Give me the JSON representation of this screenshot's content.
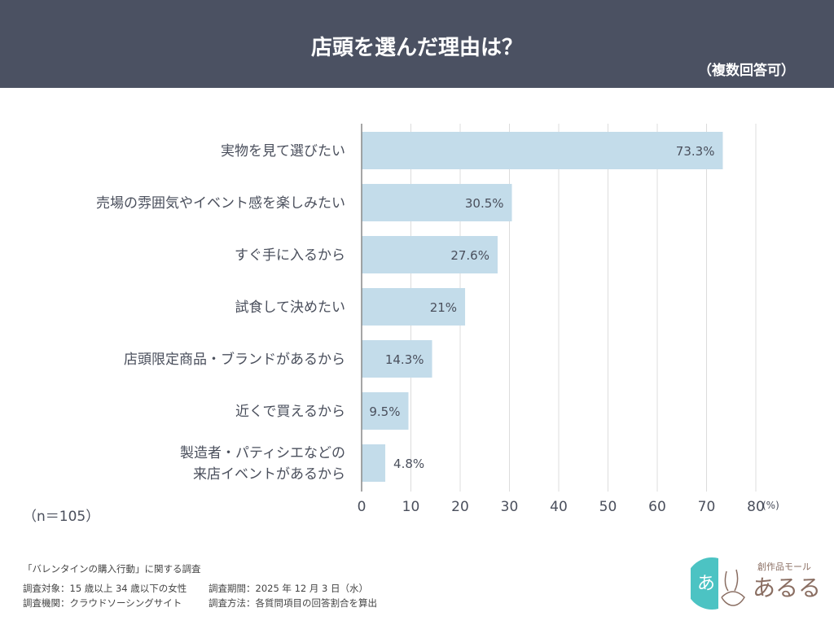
{
  "header": {
    "title": "店頭を選んだ理由は？",
    "subtitle": "（複数回答可）"
  },
  "chart_data": {
    "type": "bar",
    "orientation": "horizontal",
    "categories": [
      "実物を見て選びたい",
      "売場の雰囲気やイベント感を楽しみたい",
      "すぐ手に入るから",
      "試食して決めたい",
      "店頭限定商品・ブランドがあるから",
      "近くで買えるから",
      "製造者・パティシエなどの\n来店イベントがあるから"
    ],
    "values": [
      73.3,
      30.5,
      27.6,
      21,
      14.3,
      9.5,
      4.8
    ],
    "data_labels": [
      "73.3%",
      "30.5%",
      "27.6%",
      "21%",
      "14.3%",
      "9.5%",
      "4.8%"
    ],
    "xlim": [
      0,
      80
    ],
    "xticks": [
      "0",
      "10",
      "20",
      "30",
      "40",
      "50",
      "60",
      "70",
      "80"
    ],
    "xunit": "(%)",
    "grid": true,
    "bar_color": "#c3dcea"
  },
  "sample": "（n＝105）",
  "footer": {
    "survey_title": "「バレンタインの購入行動」に関する調査",
    "target": "調査対象：15 歳以上 34 歳以下の女性",
    "period": "調査期間：2025 年 12 月 3 日（水）",
    "agency": "調査機関：クラウドソーシングサイト",
    "method": "調査方法：各質問項目の回答割合を算出"
  },
  "logo": {
    "tagline": "創作品モール",
    "name": "あるる",
    "mark": "あ"
  }
}
